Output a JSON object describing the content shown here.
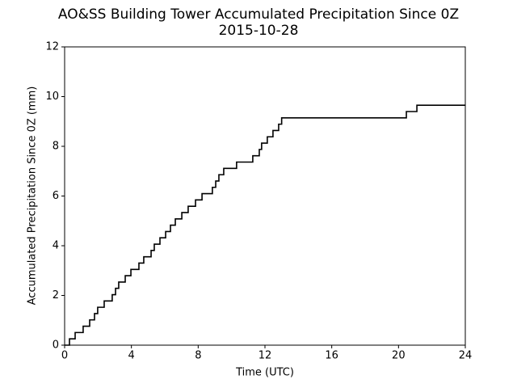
{
  "chart_data": {
    "type": "line",
    "drawstyle": "steps-post",
    "title": "AO&SS Building Tower Accumulated Precipitation Since 0Z",
    "subtitle": "2015-10-28",
    "x_label": "Time (UTC)",
    "y_label": "Accumulated Precipitation Since 0Z (mm)",
    "x": [
      0,
      0.29,
      0.63,
      1.11,
      1.5,
      1.79,
      1.98,
      2.37,
      2.85,
      3.05,
      3.24,
      3.63,
      3.97,
      4.45,
      4.74,
      5.18,
      5.37,
      5.71,
      6.05,
      6.34,
      6.63,
      7.02,
      7.4,
      7.84,
      8.23,
      8.85,
      9.05,
      9.24,
      9.53,
      10.3,
      11.27,
      11.66,
      11.8,
      12.14,
      12.48,
      12.82,
      13.0,
      20.47,
      21.1,
      24
    ],
    "series": [
      {
        "name": "Accumulated precipitation",
        "color": "#000000",
        "values": [
          0,
          0.254,
          0.508,
          0.762,
          1.016,
          1.27,
          1.524,
          1.778,
          2.032,
          2.286,
          2.54,
          2.794,
          3.048,
          3.302,
          3.556,
          3.81,
          4.064,
          4.318,
          4.572,
          4.826,
          5.08,
          5.334,
          5.588,
          5.842,
          6.096,
          6.35,
          6.604,
          6.858,
          7.112,
          7.366,
          7.62,
          7.874,
          8.128,
          8.382,
          8.636,
          8.89,
          9.144,
          9.398,
          9.652,
          9.652
        ]
      }
    ],
    "xlim": [
      0,
      24
    ],
    "xticks": [
      0,
      4,
      8,
      12,
      16,
      20,
      24
    ],
    "ylim": [
      0,
      12
    ],
    "yticks": [
      0,
      2,
      4,
      6,
      8,
      10,
      12
    ],
    "grid": false
  }
}
